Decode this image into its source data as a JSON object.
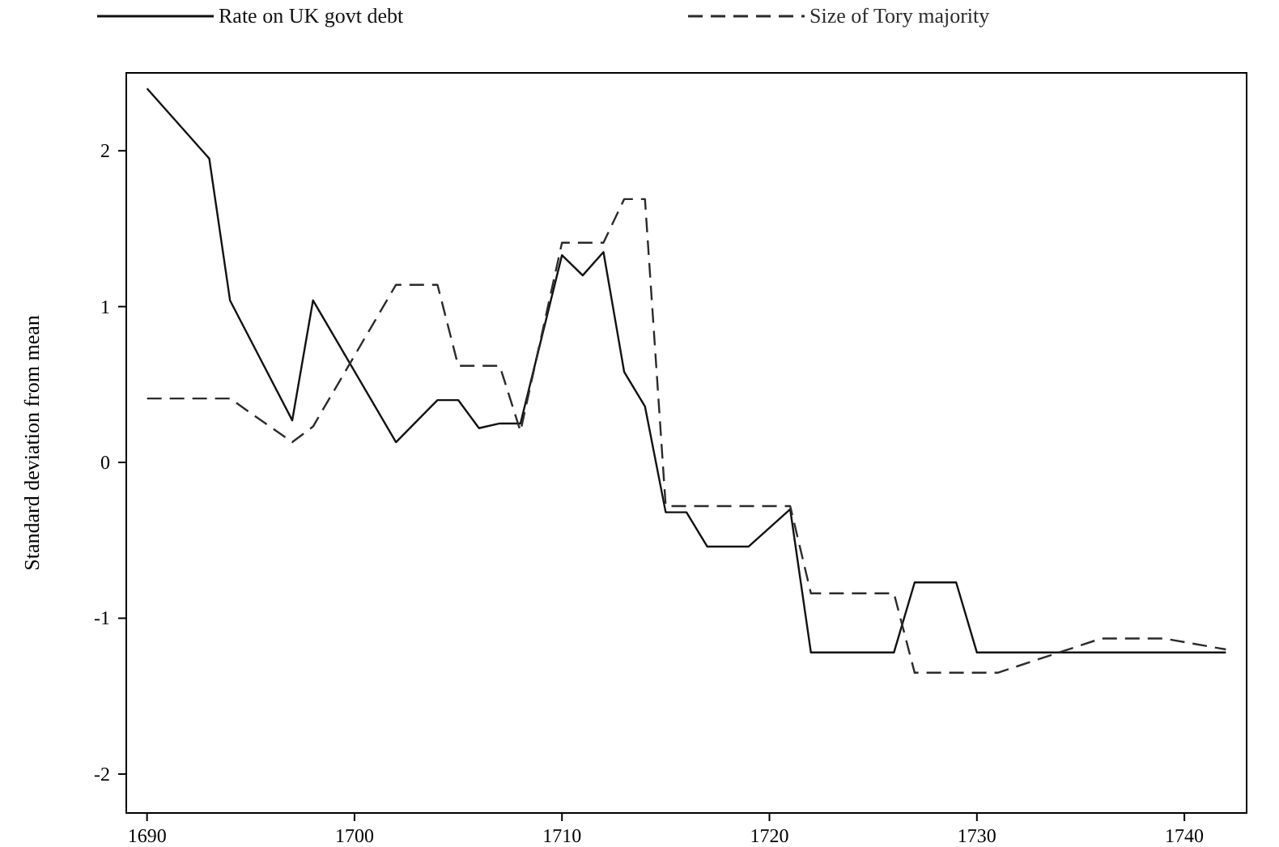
{
  "chart_data": {
    "type": "line",
    "ylabel": "Standard deviation from mean",
    "xlim": [
      1689,
      1743
    ],
    "ylim": [
      -2.25,
      2.5
    ],
    "xticks": [
      1690,
      1700,
      1710,
      1720,
      1730,
      1740
    ],
    "yticks": [
      -2,
      -1,
      0,
      1,
      2
    ],
    "legend": "top",
    "grid": false,
    "series": [
      {
        "name": "Rate on UK govt debt",
        "color": "#111111",
        "line_style": "solid",
        "x": [
          1690,
          1693,
          1694,
          1697,
          1698,
          1702,
          1704,
          1705,
          1706,
          1707,
          1708,
          1710,
          1711,
          1712,
          1713,
          1714,
          1715,
          1716,
          1717,
          1719,
          1721,
          1722,
          1726,
          1727,
          1729,
          1730,
          1742
        ],
        "values": [
          2.4,
          1.95,
          1.04,
          0.27,
          1.04,
          0.13,
          0.4,
          0.4,
          0.22,
          0.25,
          0.25,
          1.33,
          1.2,
          1.35,
          0.58,
          0.36,
          -0.32,
          -0.32,
          -0.54,
          -0.54,
          -0.3,
          -1.22,
          -1.22,
          -0.77,
          -0.77,
          -1.22,
          -1.22
        ]
      },
      {
        "name": "Size of Tory majority",
        "color": "#2b2b2b",
        "line_style": "dashed",
        "x": [
          1690,
          1694,
          1697,
          1698,
          1702,
          1704,
          1705,
          1707,
          1708,
          1710,
          1712,
          1713,
          1714,
          1715,
          1721,
          1722,
          1726,
          1727,
          1731,
          1736,
          1739,
          1742
        ],
        "values": [
          0.41,
          0.41,
          0.13,
          0.23,
          1.14,
          1.14,
          0.62,
          0.62,
          0.2,
          1.41,
          1.41,
          1.69,
          1.69,
          -0.28,
          -0.28,
          -0.84,
          -0.84,
          -1.35,
          -1.35,
          -1.13,
          -1.13,
          -1.2
        ]
      }
    ]
  }
}
